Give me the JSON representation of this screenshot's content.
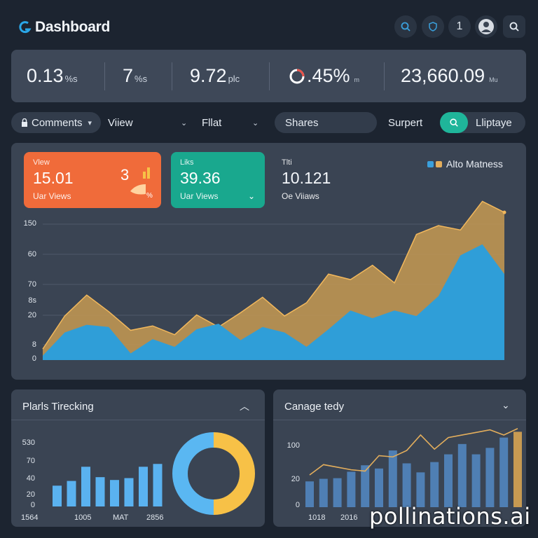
{
  "header": {
    "title": "Dashboard",
    "icons": [
      "search-icon",
      "shield-icon",
      "notification-count",
      "avatar",
      "search-icon"
    ],
    "notification_count": "1"
  },
  "stats": [
    {
      "value": "0.13",
      "unit": "%s",
      "extra": ""
    },
    {
      "value": "7",
      "unit": "%s",
      "extra": ""
    },
    {
      "value": "9.72",
      "unit": "plc",
      "extra": ""
    },
    {
      "value": ".45%",
      "unit": "",
      "extra": "m"
    },
    {
      "value": "23,660.09",
      "unit": "",
      "extra": "Mu"
    }
  ],
  "filters": {
    "comments": "Comments",
    "view": "Viiew",
    "flat": "Fllat",
    "shares": "Shares",
    "support": "Surpert",
    "update": "Lliptaye"
  },
  "cards": [
    {
      "label": "Vlew",
      "value": "15.01",
      "sub": "Uar Views",
      "badge": "3",
      "badge_pct": "%",
      "color": "#f06b3a"
    },
    {
      "label": "Liks",
      "value": "39.36",
      "sub": "Uar Views",
      "color": "#19a88e"
    },
    {
      "label": "Tlti",
      "value": "10.121",
      "sub": "Oe Viiaws"
    }
  ],
  "legend": {
    "label": "Alto Matness",
    "colors": [
      "#3aa0dc",
      "#e3ae5c"
    ]
  },
  "chart_data": [
    {
      "type": "area",
      "y_ticks": [
        "150",
        "60",
        "70",
        "8s",
        "20",
        "8",
        "0"
      ],
      "series": [
        {
          "color": "#2f9ed8",
          "values": [
            4,
            25,
            32,
            30,
            6,
            19,
            12,
            28,
            33,
            18,
            30,
            25,
            12,
            28,
            45,
            38,
            45,
            40,
            58,
            95,
            105,
            78
          ]
        },
        {
          "color": "#c79a52",
          "values": [
            10,
            40,
            59,
            44,
            27,
            31,
            23,
            41,
            30,
            43,
            57,
            40,
            52,
            78,
            73,
            86,
            70,
            114,
            122,
            118,
            144,
            134
          ]
        }
      ]
    },
    {
      "type": "bar",
      "title": "Plarls Tirecking",
      "y_ticks": [
        "530",
        "70",
        "40",
        "20",
        "0"
      ],
      "x_ticks": [
        "1564",
        "1005",
        "MAT",
        "2856"
      ],
      "values": [
        22,
        27,
        42,
        31,
        28,
        30,
        42,
        45
      ],
      "color": "#5ab2f0"
    },
    {
      "type": "pie",
      "slices": [
        {
          "value": 50,
          "color": "#f7c147"
        },
        {
          "value": 50,
          "color": "#5ab7f2"
        }
      ]
    },
    {
      "type": "bar",
      "title": "Canage tedy",
      "y_ticks": [
        "100",
        "20",
        "0"
      ],
      "x_ticks": [
        "1018",
        "2016"
      ],
      "bars": [
        40,
        44,
        45,
        55,
        65,
        60,
        88,
        68,
        54,
        70,
        82,
        98,
        82,
        92,
        108,
        117
      ],
      "line": [
        50,
        66,
        62,
        58,
        56,
        80,
        78,
        88,
        112,
        90,
        108,
        112,
        116,
        120,
        112,
        122
      ]
    }
  ],
  "bottom_panels": {
    "left_title": "Plarls Tirecking",
    "right_title": "Canage tedy"
  },
  "watermark": "pollinations.ai"
}
